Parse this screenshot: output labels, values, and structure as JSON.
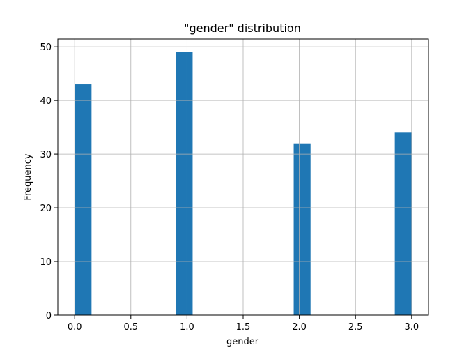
{
  "chart_data": {
    "type": "bar",
    "title": "\"gender\" distribution",
    "xlabel": "gender",
    "ylabel": "Frequency",
    "xlim": [
      -0.15,
      3.15
    ],
    "ylim": [
      0,
      51.45
    ],
    "x_ticks": [
      0.0,
      0.5,
      1.0,
      1.5,
      2.0,
      2.5,
      3.0
    ],
    "x_tick_labels": [
      "0.0",
      "0.5",
      "1.0",
      "1.5",
      "2.0",
      "2.5",
      "3.0"
    ],
    "y_ticks": [
      0,
      10,
      20,
      30,
      40,
      50
    ],
    "y_tick_labels": [
      "0",
      "10",
      "20",
      "30",
      "40",
      "50"
    ],
    "grid": true,
    "bar_color": "#1f77b4",
    "bins": [
      {
        "start": 0.0,
        "end": 0.15,
        "value": 43
      },
      {
        "start": 0.9,
        "end": 1.05,
        "value": 49
      },
      {
        "start": 1.95,
        "end": 2.1,
        "value": 32
      },
      {
        "start": 2.85,
        "end": 3.0,
        "value": 34
      }
    ]
  }
}
